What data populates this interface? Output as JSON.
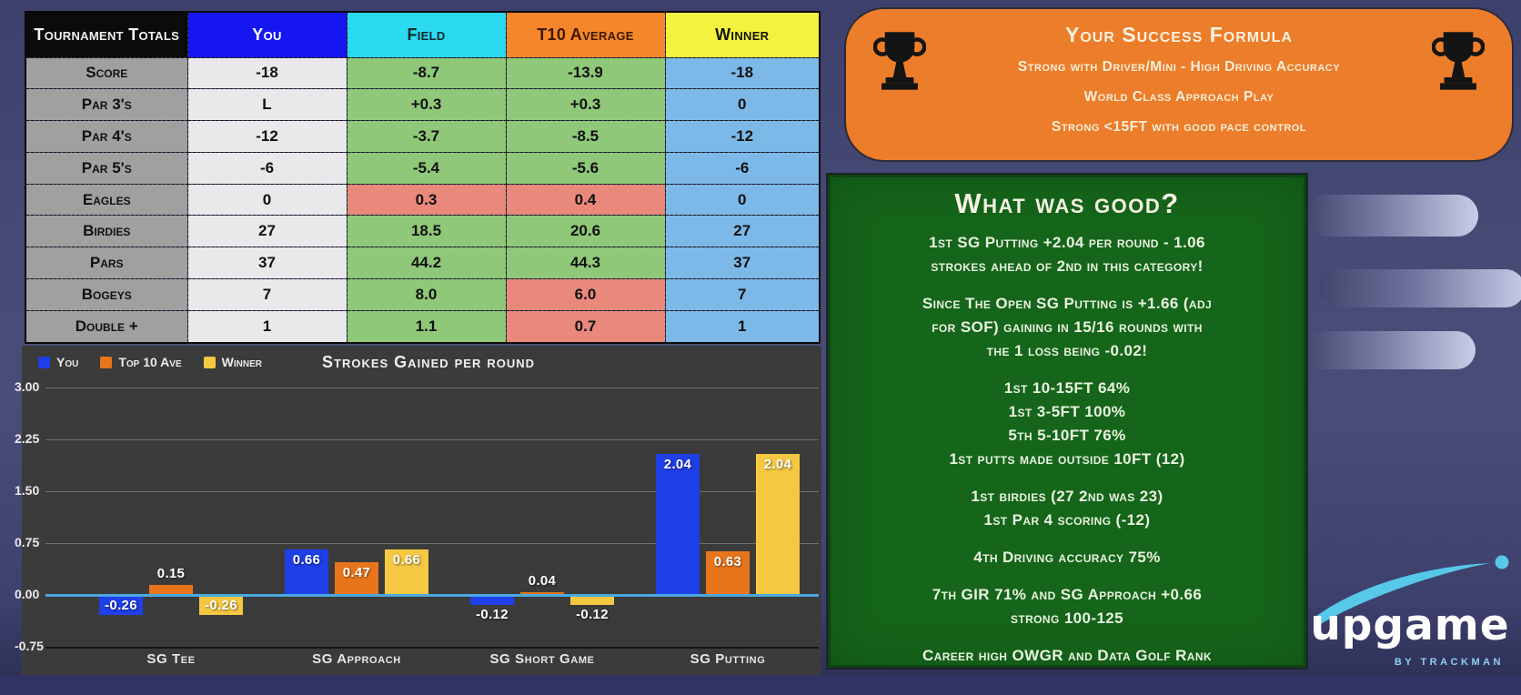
{
  "table": {
    "title": "Tournament Totals",
    "columns": [
      "You",
      "Field",
      "T10 Average",
      "Winner"
    ],
    "rows": [
      {
        "label": "Score",
        "you": "-18",
        "field": "-8.7",
        "t10": "-13.9",
        "winner": "-18",
        "field_state": "good",
        "t10_state": "good"
      },
      {
        "label": "Par 3's",
        "you": "L",
        "field": "+0.3",
        "t10": "+0.3",
        "winner": "0",
        "field_state": "good",
        "t10_state": "good"
      },
      {
        "label": "Par 4's",
        "you": "-12",
        "field": "-3.7",
        "t10": "-8.5",
        "winner": "-12",
        "field_state": "good",
        "t10_state": "good"
      },
      {
        "label": "Par 5's",
        "you": "-6",
        "field": "-5.4",
        "t10": "-5.6",
        "winner": "-6",
        "field_state": "good",
        "t10_state": "good"
      },
      {
        "label": "Eagles",
        "you": "0",
        "field": "0.3",
        "t10": "0.4",
        "winner": "0",
        "field_state": "bad",
        "t10_state": "bad"
      },
      {
        "label": "Birdies",
        "you": "27",
        "field": "18.5",
        "t10": "20.6",
        "winner": "27",
        "field_state": "good",
        "t10_state": "good"
      },
      {
        "label": "Pars",
        "you": "37",
        "field": "44.2",
        "t10": "44.3",
        "winner": "37",
        "field_state": "good",
        "t10_state": "good"
      },
      {
        "label": "Bogeys",
        "you": "7",
        "field": "8.0",
        "t10": "6.0",
        "winner": "7",
        "field_state": "good",
        "t10_state": "bad"
      },
      {
        "label": "Double +",
        "you": "1",
        "field": "1.1",
        "t10": "0.7",
        "winner": "1",
        "field_state": "good",
        "t10_state": "bad"
      }
    ],
    "colors": {
      "header_label_bg": "#0b0b0b",
      "you_header": "#1617f0",
      "field_header": "#2bd9f0",
      "t10_header": "#f5872b",
      "winner_header": "#f4f23f",
      "label_cell": "#a0a0a0",
      "you_cell": "#e9e9ec",
      "good_cell": "#8fc878",
      "bad_cell": "#e8897c",
      "winner_cell": "#7cb9e8"
    }
  },
  "chart_data": {
    "type": "bar",
    "title": "Strokes Gained per round",
    "categories": [
      "SG Tee",
      "SG Approach",
      "SG Short Game",
      "SG Putting"
    ],
    "series": [
      {
        "name": "You",
        "color": "#1f3fe8",
        "values": [
          -0.26,
          0.66,
          -0.12,
          2.04
        ]
      },
      {
        "name": "Top 10 Ave",
        "color": "#e8751c",
        "values": [
          0.15,
          0.47,
          0.04,
          0.63
        ]
      },
      {
        "name": "Winner",
        "color": "#f5c842",
        "values": [
          -0.26,
          0.66,
          -0.12,
          2.04
        ]
      }
    ],
    "y_ticks": [
      3.0,
      2.25,
      1.5,
      0.75,
      0.0,
      -0.75
    ],
    "ylim": [
      -0.75,
      3.0
    ],
    "grid": true,
    "legend_position": "top-left",
    "zero_line_color": "#4aa8e0",
    "xlabel": "",
    "ylabel": ""
  },
  "success_card": {
    "title": "Your Success Formula",
    "lines": [
      "Strong with Driver/Mini - High Driving Accuracy",
      "World Class Approach Play",
      "Strong <15FT with good pace control"
    ],
    "bg": "#ec7d2a"
  },
  "good_card": {
    "title": "What was good?",
    "paragraphs": [
      [
        "1st SG Putting +2.04 per round - 1.06",
        "strokes ahead of 2nd in this category!"
      ],
      [
        "Since The Open SG Putting is +1.66 (adj",
        "for SOF) gaining in 15/16 rounds with",
        "the 1 loss being -0.02!"
      ],
      [
        "1st 10-15FT 64%",
        "1st 3-5FT 100%",
        "5th 5-10FT 76%",
        "1st putts made outside 10FT (12)"
      ],
      [
        "1st birdies (27 2nd was 23)",
        "1st Par 4 scoring (-12)"
      ],
      [
        "4th Driving accuracy 75%"
      ],
      [
        "7th GIR 71% and SG Approach +0.66",
        "strong 100-125"
      ],
      [
        "Career high OWGR and Data Golf Rank"
      ]
    ],
    "bg": "#15651a"
  },
  "logo": {
    "name": "upgame",
    "sub": "BY TRACKMAN",
    "accent": "#56c8e8"
  }
}
